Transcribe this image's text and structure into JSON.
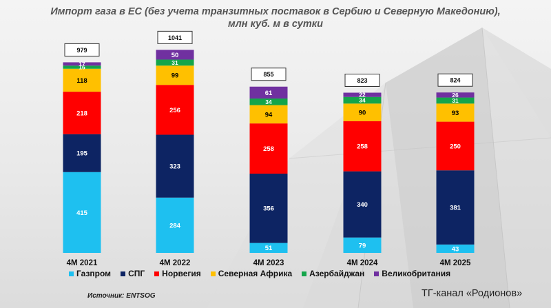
{
  "title_line1": "Импорт газа в ЕС (без учета транзитных поставок в Сербию и Северную Македонию),",
  "title_line2": "млн куб. м в сутки",
  "source": "Источник: ENTSOG",
  "channel": "ТГ-канал «Родионов»",
  "chart_data": {
    "type": "bar",
    "stacked": true,
    "categories": [
      "4М 2021",
      "4М 2022",
      "4М 2023",
      "4М 2024",
      "4М 2025"
    ],
    "totals": [
      "979",
      "1041",
      "855",
      "823",
      "824"
    ],
    "ylim": [
      0,
      1100
    ],
    "legend_position": "bottom",
    "series": [
      {
        "name": "Газпром",
        "color": "#1ec0f0",
        "values": [
          415,
          284,
          51,
          79,
          43
        ]
      },
      {
        "name": "СПГ",
        "color": "#0d2463",
        "values": [
          195,
          323,
          356,
          340,
          381
        ]
      },
      {
        "name": "Норвегия",
        "color": "#ff0000",
        "values": [
          218,
          256,
          258,
          258,
          250
        ]
      },
      {
        "name": "Северная Африка",
        "color": "#ffc000",
        "values": [
          118,
          99,
          94,
          90,
          93
        ]
      },
      {
        "name": "Азербайджан",
        "color": "#14a54a",
        "values": [
          16,
          31,
          34,
          34,
          31
        ]
      },
      {
        "name": "Великобритания",
        "color": "#7030a0",
        "values": [
          17,
          50,
          61,
          22,
          26
        ]
      }
    ]
  }
}
